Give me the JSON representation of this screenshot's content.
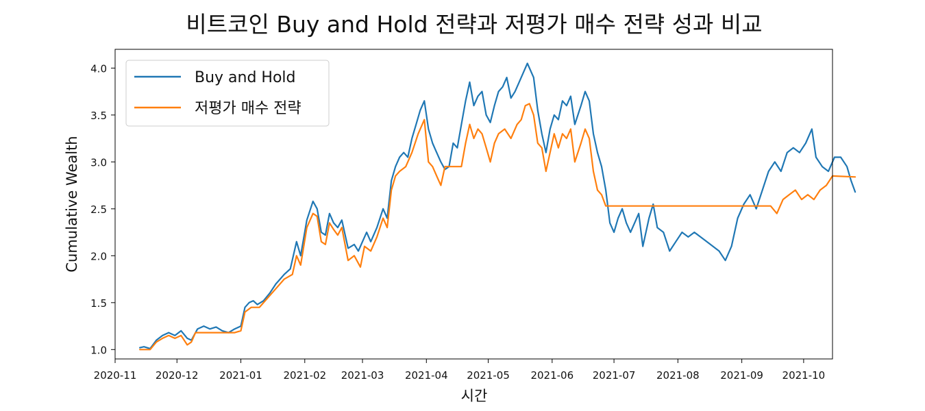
{
  "chart_data": {
    "type": "line",
    "title": "비트코인 Buy and Hold 전략과 저평가 매수 전략 성과 비교",
    "xlabel": "시간",
    "ylabel": "Cumulative Wealth",
    "xlim": [
      "2020-11-01",
      "2021-10-15"
    ],
    "ylim": [
      0.9,
      4.2
    ],
    "x_ticks": [
      "2020-11-01",
      "2020-12-01",
      "2021-01-01",
      "2021-02-01",
      "2021-03-01",
      "2021-04-01",
      "2021-05-01",
      "2021-06-01",
      "2021-07-01",
      "2021-08-01",
      "2021-09-01",
      "2021-10-01"
    ],
    "x_tick_labels": [
      "2020-11",
      "2020-12",
      "2021-01",
      "2021-02",
      "2021-03",
      "2021-04",
      "2021-05",
      "2021-06",
      "2021-07",
      "2021-08",
      "2021-09",
      "2021-10"
    ],
    "y_ticks": [
      1.0,
      1.5,
      2.0,
      2.5,
      3.0,
      3.5,
      4.0
    ],
    "y_tick_labels": [
      "1.0",
      "1.5",
      "2.0",
      "2.5",
      "3.0",
      "3.5",
      "4.0"
    ],
    "grid": false,
    "legend_position": "top-left",
    "series": [
      {
        "name": "Buy and Hold",
        "color": "#1f77b4",
        "points": [
          [
            "2020-11-13",
            1.02
          ],
          [
            "2020-11-15",
            1.03
          ],
          [
            "2020-11-18",
            1.01
          ],
          [
            "2020-11-21",
            1.1
          ],
          [
            "2020-11-24",
            1.15
          ],
          [
            "2020-11-27",
            1.18
          ],
          [
            "2020-11-30",
            1.15
          ],
          [
            "2020-12-03",
            1.2
          ],
          [
            "2020-12-06",
            1.12
          ],
          [
            "2020-12-08",
            1.1
          ],
          [
            "2020-12-11",
            1.22
          ],
          [
            "2020-12-14",
            1.25
          ],
          [
            "2020-12-17",
            1.22
          ],
          [
            "2020-12-20",
            1.24
          ],
          [
            "2020-12-23",
            1.2
          ],
          [
            "2020-12-26",
            1.18
          ],
          [
            "2020-12-29",
            1.22
          ],
          [
            "2021-01-01",
            1.25
          ],
          [
            "2021-01-03",
            1.45
          ],
          [
            "2021-01-05",
            1.5
          ],
          [
            "2021-01-07",
            1.52
          ],
          [
            "2021-01-09",
            1.48
          ],
          [
            "2021-01-12",
            1.52
          ],
          [
            "2021-01-15",
            1.6
          ],
          [
            "2021-01-18",
            1.7
          ],
          [
            "2021-01-20",
            1.75
          ],
          [
            "2021-01-22",
            1.8
          ],
          [
            "2021-01-25",
            1.86
          ],
          [
            "2021-01-28",
            2.15
          ],
          [
            "2021-01-30",
            2.0
          ],
          [
            "2021-02-02",
            2.38
          ],
          [
            "2021-02-05",
            2.58
          ],
          [
            "2021-02-07",
            2.5
          ],
          [
            "2021-02-09",
            2.25
          ],
          [
            "2021-02-11",
            2.22
          ],
          [
            "2021-02-13",
            2.45
          ],
          [
            "2021-02-15",
            2.35
          ],
          [
            "2021-02-17",
            2.3
          ],
          [
            "2021-02-19",
            2.38
          ],
          [
            "2021-02-22",
            2.08
          ],
          [
            "2021-02-25",
            2.12
          ],
          [
            "2021-02-27",
            2.05
          ],
          [
            "2021-03-01",
            2.15
          ],
          [
            "2021-03-03",
            2.25
          ],
          [
            "2021-03-05",
            2.15
          ],
          [
            "2021-03-08",
            2.3
          ],
          [
            "2021-03-11",
            2.5
          ],
          [
            "2021-03-13",
            2.4
          ],
          [
            "2021-03-15",
            2.8
          ],
          [
            "2021-03-17",
            2.95
          ],
          [
            "2021-03-19",
            3.05
          ],
          [
            "2021-03-21",
            3.1
          ],
          [
            "2021-03-23",
            3.05
          ],
          [
            "2021-03-25",
            3.25
          ],
          [
            "2021-03-27",
            3.4
          ],
          [
            "2021-03-29",
            3.55
          ],
          [
            "2021-03-31",
            3.65
          ],
          [
            "2021-04-02",
            3.35
          ],
          [
            "2021-04-04",
            3.2
          ],
          [
            "2021-04-06",
            3.1
          ],
          [
            "2021-04-08",
            3.0
          ],
          [
            "2021-04-10",
            2.92
          ],
          [
            "2021-04-12",
            2.95
          ],
          [
            "2021-04-14",
            3.2
          ],
          [
            "2021-04-16",
            3.15
          ],
          [
            "2021-04-18",
            3.4
          ],
          [
            "2021-04-20",
            3.65
          ],
          [
            "2021-04-22",
            3.85
          ],
          [
            "2021-04-24",
            3.6
          ],
          [
            "2021-04-26",
            3.7
          ],
          [
            "2021-04-28",
            3.75
          ],
          [
            "2021-04-30",
            3.5
          ],
          [
            "2021-05-02",
            3.42
          ],
          [
            "2021-05-04",
            3.6
          ],
          [
            "2021-05-06",
            3.75
          ],
          [
            "2021-05-08",
            3.8
          ],
          [
            "2021-05-10",
            3.9
          ],
          [
            "2021-05-12",
            3.68
          ],
          [
            "2021-05-14",
            3.75
          ],
          [
            "2021-05-16",
            3.85
          ],
          [
            "2021-05-18",
            3.95
          ],
          [
            "2021-05-20",
            4.05
          ],
          [
            "2021-05-23",
            3.9
          ],
          [
            "2021-05-25",
            3.55
          ],
          [
            "2021-05-27",
            3.3
          ],
          [
            "2021-05-29",
            3.1
          ],
          [
            "2021-05-31",
            3.35
          ],
          [
            "2021-06-02",
            3.5
          ],
          [
            "2021-06-04",
            3.45
          ],
          [
            "2021-06-06",
            3.65
          ],
          [
            "2021-06-08",
            3.6
          ],
          [
            "2021-06-10",
            3.7
          ],
          [
            "2021-06-12",
            3.4
          ],
          [
            "2021-06-15",
            3.6
          ],
          [
            "2021-06-17",
            3.75
          ],
          [
            "2021-06-19",
            3.65
          ],
          [
            "2021-06-21",
            3.3
          ],
          [
            "2021-06-23",
            3.1
          ],
          [
            "2021-06-25",
            2.95
          ],
          [
            "2021-06-27",
            2.7
          ],
          [
            "2021-06-29",
            2.35
          ],
          [
            "2021-07-01",
            2.25
          ],
          [
            "2021-07-03",
            2.4
          ],
          [
            "2021-07-05",
            2.5
          ],
          [
            "2021-07-07",
            2.35
          ],
          [
            "2021-07-09",
            2.25
          ],
          [
            "2021-07-11",
            2.35
          ],
          [
            "2021-07-13",
            2.45
          ],
          [
            "2021-07-15",
            2.1
          ],
          [
            "2021-07-18",
            2.4
          ],
          [
            "2021-07-20",
            2.55
          ],
          [
            "2021-07-22",
            2.3
          ],
          [
            "2021-07-25",
            2.25
          ],
          [
            "2021-07-28",
            2.05
          ],
          [
            "2021-07-31",
            2.15
          ],
          [
            "2021-08-03",
            2.25
          ],
          [
            "2021-08-06",
            2.2
          ],
          [
            "2021-08-09",
            2.25
          ],
          [
            "2021-08-12",
            2.2
          ],
          [
            "2021-08-15",
            2.15
          ],
          [
            "2021-08-18",
            2.1
          ],
          [
            "2021-08-21",
            2.05
          ],
          [
            "2021-08-24",
            1.95
          ],
          [
            "2021-08-27",
            2.1
          ],
          [
            "2021-08-30",
            2.4
          ],
          [
            "2021-09-02",
            2.55
          ],
          [
            "2021-09-05",
            2.65
          ],
          [
            "2021-09-08",
            2.5
          ],
          [
            "2021-09-11",
            2.7
          ],
          [
            "2021-09-14",
            2.9
          ],
          [
            "2021-09-17",
            3.0
          ],
          [
            "2021-09-20",
            2.9
          ],
          [
            "2021-09-23",
            3.1
          ],
          [
            "2021-09-26",
            3.15
          ],
          [
            "2021-09-29",
            3.1
          ],
          [
            "2021-10-02",
            3.2
          ],
          [
            "2021-10-05",
            3.35
          ],
          [
            "2021-10-07",
            3.05
          ],
          [
            "2021-10-10",
            2.95
          ],
          [
            "2021-10-13",
            2.9
          ],
          [
            "2021-10-16",
            3.05
          ],
          [
            "2021-10-19",
            3.05
          ],
          [
            "2021-10-22",
            2.95
          ],
          [
            "2021-10-24",
            2.8
          ],
          [
            "2021-10-26",
            2.68
          ]
        ]
      },
      {
        "name": "저평가 매수 전략",
        "color": "#ff7f0e",
        "points": [
          [
            "2020-11-13",
            1.0
          ],
          [
            "2020-11-18",
            1.0
          ],
          [
            "2020-11-21",
            1.08
          ],
          [
            "2020-11-24",
            1.12
          ],
          [
            "2020-11-27",
            1.15
          ],
          [
            "2020-11-30",
            1.12
          ],
          [
            "2020-12-03",
            1.15
          ],
          [
            "2020-12-06",
            1.05
          ],
          [
            "2020-12-08",
            1.08
          ],
          [
            "2020-12-10",
            1.18
          ],
          [
            "2020-12-29",
            1.18
          ],
          [
            "2021-01-01",
            1.2
          ],
          [
            "2021-01-03",
            1.4
          ],
          [
            "2021-01-06",
            1.45
          ],
          [
            "2021-01-10",
            1.45
          ],
          [
            "2021-01-14",
            1.55
          ],
          [
            "2021-01-18",
            1.65
          ],
          [
            "2021-01-22",
            1.75
          ],
          [
            "2021-01-26",
            1.8
          ],
          [
            "2021-01-28",
            2.0
          ],
          [
            "2021-01-30",
            1.9
          ],
          [
            "2021-02-02",
            2.3
          ],
          [
            "2021-02-05",
            2.45
          ],
          [
            "2021-02-07",
            2.42
          ],
          [
            "2021-02-09",
            2.15
          ],
          [
            "2021-02-11",
            2.12
          ],
          [
            "2021-02-13",
            2.35
          ],
          [
            "2021-02-15",
            2.28
          ],
          [
            "2021-02-17",
            2.22
          ],
          [
            "2021-02-19",
            2.3
          ],
          [
            "2021-02-22",
            1.95
          ],
          [
            "2021-02-25",
            2.0
          ],
          [
            "2021-02-28",
            1.88
          ],
          [
            "2021-03-02",
            2.1
          ],
          [
            "2021-03-05",
            2.05
          ],
          [
            "2021-03-08",
            2.2
          ],
          [
            "2021-03-11",
            2.4
          ],
          [
            "2021-03-13",
            2.3
          ],
          [
            "2021-03-15",
            2.7
          ],
          [
            "2021-03-17",
            2.85
          ],
          [
            "2021-03-19",
            2.9
          ],
          [
            "2021-03-22",
            2.95
          ],
          [
            "2021-03-25",
            3.1
          ],
          [
            "2021-03-28",
            3.3
          ],
          [
            "2021-03-31",
            3.45
          ],
          [
            "2021-04-02",
            3.0
          ],
          [
            "2021-04-04",
            2.95
          ],
          [
            "2021-04-06",
            2.85
          ],
          [
            "2021-04-08",
            2.75
          ],
          [
            "2021-04-10",
            2.95
          ],
          [
            "2021-04-18",
            2.95
          ],
          [
            "2021-04-20",
            3.2
          ],
          [
            "2021-04-22",
            3.4
          ],
          [
            "2021-04-24",
            3.25
          ],
          [
            "2021-04-26",
            3.35
          ],
          [
            "2021-04-28",
            3.3
          ],
          [
            "2021-04-30",
            3.15
          ],
          [
            "2021-05-02",
            3.0
          ],
          [
            "2021-05-04",
            3.2
          ],
          [
            "2021-05-06",
            3.3
          ],
          [
            "2021-05-09",
            3.35
          ],
          [
            "2021-05-12",
            3.25
          ],
          [
            "2021-05-15",
            3.4
          ],
          [
            "2021-05-17",
            3.45
          ],
          [
            "2021-05-19",
            3.6
          ],
          [
            "2021-05-21",
            3.62
          ],
          [
            "2021-05-23",
            3.5
          ],
          [
            "2021-05-25",
            3.2
          ],
          [
            "2021-05-27",
            3.15
          ],
          [
            "2021-05-29",
            2.9
          ],
          [
            "2021-05-31",
            3.1
          ],
          [
            "2021-06-02",
            3.3
          ],
          [
            "2021-06-04",
            3.15
          ],
          [
            "2021-06-06",
            3.3
          ],
          [
            "2021-06-08",
            3.25
          ],
          [
            "2021-06-10",
            3.35
          ],
          [
            "2021-06-12",
            3.0
          ],
          [
            "2021-06-15",
            3.2
          ],
          [
            "2021-06-17",
            3.35
          ],
          [
            "2021-06-19",
            3.25
          ],
          [
            "2021-06-21",
            2.9
          ],
          [
            "2021-06-23",
            2.7
          ],
          [
            "2021-06-25",
            2.65
          ],
          [
            "2021-06-27",
            2.53
          ],
          [
            "2021-09-15",
            2.53
          ],
          [
            "2021-09-18",
            2.45
          ],
          [
            "2021-09-21",
            2.6
          ],
          [
            "2021-09-24",
            2.65
          ],
          [
            "2021-09-27",
            2.7
          ],
          [
            "2021-09-30",
            2.6
          ],
          [
            "2021-10-03",
            2.65
          ],
          [
            "2021-10-06",
            2.6
          ],
          [
            "2021-10-09",
            2.7
          ],
          [
            "2021-10-12",
            2.75
          ],
          [
            "2021-10-15",
            2.85
          ],
          [
            "2021-10-26",
            2.84
          ]
        ]
      }
    ]
  }
}
